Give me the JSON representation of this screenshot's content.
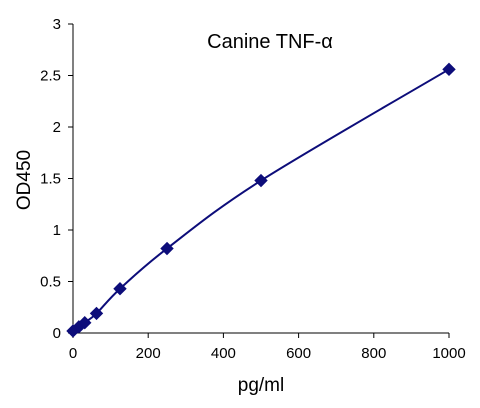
{
  "chart_data": {
    "type": "scatter",
    "title": "Canine TNF-α",
    "xlabel": "pg/ml",
    "ylabel": "OD450",
    "xlim": [
      0,
      1000
    ],
    "ylim": [
      0,
      3
    ],
    "xticks": [
      "0",
      "200",
      "400",
      "600",
      "800",
      "1000"
    ],
    "yticks": [
      "0",
      "0.5",
      "1",
      "1.5",
      "2",
      "2.5",
      "3"
    ],
    "grid": false,
    "legend": "none",
    "marker": "diamond",
    "trendline": "smooth curve through points",
    "series": [
      {
        "x": [
          0,
          15.6,
          31.25,
          62.5,
          125,
          250,
          500,
          1000
        ],
        "y": [
          0.02,
          0.06,
          0.1,
          0.19,
          0.43,
          0.82,
          1.48,
          2.56
        ]
      }
    ],
    "colors": {
      "series": "#0d0d7a",
      "axis": "#000000"
    }
  }
}
